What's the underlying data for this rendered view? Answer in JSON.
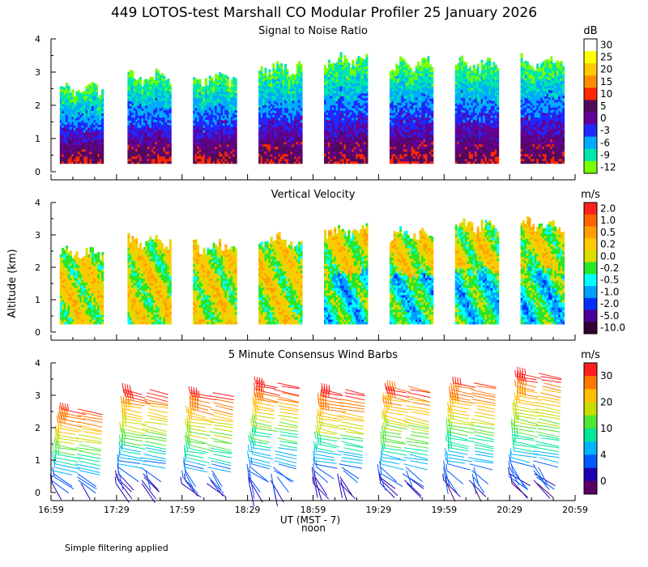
{
  "title": "449 LOTOS-test Marshall CO Modular Profiler 25 January 2026",
  "ylabel": "Altitude (km)",
  "footnote": "Simple filtering applied",
  "chart_data": [
    {
      "type": "heatmap",
      "title": "Signal to Noise Ratio",
      "unit": "dB",
      "ylim": [
        0,
        4
      ],
      "yticks": [
        0,
        1,
        2,
        3,
        4
      ],
      "colorbar": {
        "labels": [
          "30",
          "25",
          "20",
          "15",
          "10",
          "5",
          "0",
          "-3",
          "-6",
          "-9",
          "-12"
        ],
        "colors": [
          "#ffffff",
          "#ffff00",
          "#ffc800",
          "#ff8c00",
          "#ff2800",
          "#500a5a",
          "#640096",
          "#1e28ff",
          "#00aaff",
          "#00e6aa",
          "#78ff00"
        ]
      },
      "segments": [
        {
          "start": "17:03",
          "end": "17:23",
          "bottom_km": 0.25,
          "top_km": 2.4
        },
        {
          "start": "17:34",
          "end": "17:54",
          "bottom_km": 0.25,
          "top_km": 2.8
        },
        {
          "start": "18:04",
          "end": "18:24",
          "bottom_km": 0.25,
          "top_km": 2.8
        },
        {
          "start": "18:34",
          "end": "18:54",
          "bottom_km": 0.25,
          "top_km": 3.1
        },
        {
          "start": "19:04",
          "end": "19:24",
          "bottom_km": 0.25,
          "top_km": 3.3
        },
        {
          "start": "19:34",
          "end": "19:54",
          "bottom_km": 0.25,
          "top_km": 3.2
        },
        {
          "start": "20:04",
          "end": "20:24",
          "bottom_km": 0.25,
          "top_km": 3.2
        },
        {
          "start": "20:34",
          "end": "20:54",
          "bottom_km": 0.25,
          "top_km": 3.3
        }
      ]
    },
    {
      "type": "heatmap",
      "title": "Vertical Velocity",
      "unit": "m/s",
      "ylim": [
        0,
        4
      ],
      "yticks": [
        0,
        1,
        2,
        3,
        4
      ],
      "colorbar": {
        "labels": [
          "2.0",
          "1.0",
          "0.5",
          "0.2",
          "0.0",
          "-0.2",
          "-0.5",
          "-1.0",
          "-2.0",
          "-5.0",
          "-10.0"
        ],
        "colors": [
          "#ff1e1e",
          "#ff6400",
          "#ffa000",
          "#ffc800",
          "#dcdc00",
          "#28e628",
          "#00ffff",
          "#00a0ff",
          "#0032ff",
          "#4b0096",
          "#320032"
        ]
      },
      "segments": [
        {
          "start": "17:03",
          "end": "17:23",
          "bottom_km": 0.25,
          "top_km": 2.4
        },
        {
          "start": "17:34",
          "end": "17:54",
          "bottom_km": 0.25,
          "top_km": 2.8
        },
        {
          "start": "18:04",
          "end": "18:24",
          "bottom_km": 0.25,
          "top_km": 2.6
        },
        {
          "start": "18:34",
          "end": "18:54",
          "bottom_km": 0.25,
          "top_km": 2.8
        },
        {
          "start": "19:04",
          "end": "19:24",
          "bottom_km": 0.25,
          "top_km": 3.1
        },
        {
          "start": "19:34",
          "end": "19:54",
          "bottom_km": 0.25,
          "top_km": 3.0
        },
        {
          "start": "20:04",
          "end": "20:24",
          "bottom_km": 0.25,
          "top_km": 3.3
        },
        {
          "start": "20:34",
          "end": "20:54",
          "bottom_km": 0.25,
          "top_km": 3.3
        }
      ]
    },
    {
      "type": "wind_barbs",
      "title": "5 Minute Consensus Wind Barbs",
      "unit": "m/s",
      "ylim": [
        0,
        4
      ],
      "yticks": [
        0,
        1,
        2,
        3,
        4
      ],
      "colorbar": {
        "labels": [
          "30",
          "20",
          "10",
          "4",
          "0"
        ],
        "colors": [
          "#ff1e1e",
          "#ff7800",
          "#ffbe00",
          "#c8dc00",
          "#50e632",
          "#00e69b",
          "#00b4ff",
          "#005aff",
          "#1e00b4",
          "#5a0064"
        ]
      },
      "groups": [
        {
          "start": "17:00",
          "end": "17:25",
          "top_km": 2.6
        },
        {
          "start": "17:30",
          "end": "17:55",
          "top_km": 3.2
        },
        {
          "start": "18:00",
          "end": "18:25",
          "top_km": 3.1
        },
        {
          "start": "18:30",
          "end": "18:55",
          "top_km": 3.4
        },
        {
          "start": "19:00",
          "end": "19:25",
          "top_km": 3.2
        },
        {
          "start": "19:30",
          "end": "19:55",
          "top_km": 3.3
        },
        {
          "start": "20:00",
          "end": "20:25",
          "top_km": 3.4
        },
        {
          "start": "20:30",
          "end": "20:55",
          "top_km": 3.7
        }
      ]
    }
  ],
  "xaxis": {
    "range": [
      "16:59",
      "20:59"
    ],
    "ticks": [
      "16:59",
      "17:29",
      "17:59",
      "18:29",
      "18:59",
      "19:29",
      "19:59",
      "20:29",
      "20:59"
    ],
    "label": "UT  (MST - 7)",
    "noon_label": "noon",
    "noon_time": "18:59"
  }
}
